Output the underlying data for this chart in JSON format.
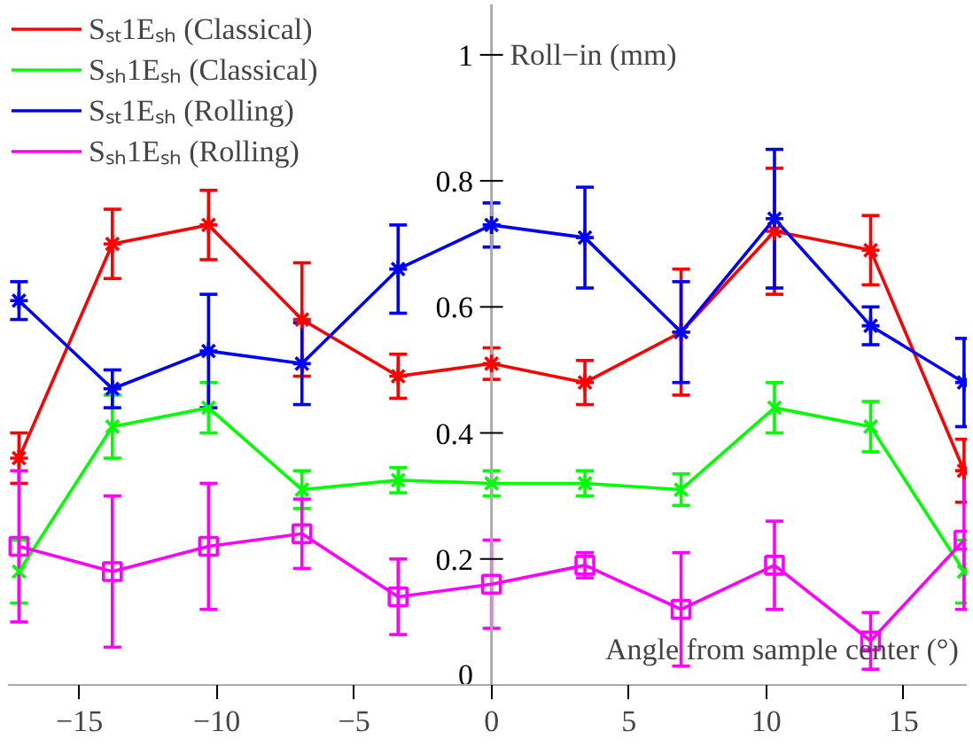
{
  "chart_data": {
    "type": "line",
    "xlabel": "Angle from sample center (°)",
    "ylabel": "Roll−in (mm)",
    "x": [
      -17.2,
      -13.8,
      -10.3,
      -6.9,
      -3.4,
      0,
      3.4,
      6.9,
      10.3,
      13.8,
      17.2
    ],
    "xlim": [
      -17.6,
      17.3
    ],
    "ylim": [
      0,
      1.08
    ],
    "xticks": [
      {
        "value": -15,
        "label": "−15"
      },
      {
        "value": -10,
        "label": "−10"
      },
      {
        "value": -5,
        "label": "−5"
      },
      0,
      5,
      10,
      15
    ],
    "yticks": [
      0,
      0.2,
      0.4,
      0.6,
      0.8,
      1
    ],
    "grid": false,
    "legend": "top left",
    "line_style": "solid",
    "series": [
      {
        "name": "Sₛₜ1Eₛₕ (Classical)",
        "color": "#ff0000",
        "marker": "cross",
        "values": [
          0.36,
          0.7,
          0.73,
          0.58,
          0.49,
          0.51,
          0.48,
          0.56,
          0.72,
          0.69,
          0.34
        ],
        "errors": [
          0.04,
          0.055,
          0.055,
          0.09,
          0.035,
          0.025,
          0.035,
          0.1,
          0.1,
          0.055,
          0.05
        ]
      },
      {
        "name": "Sₛₕ1Eₛₕ (Classical)",
        "color": "#00ff00",
        "marker": "x",
        "values": [
          0.18,
          0.41,
          0.44,
          0.31,
          0.325,
          0.32,
          0.32,
          0.31,
          0.44,
          0.41,
          0.18
        ],
        "errors": [
          0.05,
          0.05,
          0.04,
          0.03,
          0.02,
          0.02,
          0.02,
          0.025,
          0.04,
          0.04,
          0.05
        ]
      },
      {
        "name": "Sₛₜ1Eₛₕ (Rolling)",
        "color": "#0000ff",
        "marker": "cross",
        "values": [
          0.61,
          0.47,
          0.53,
          0.51,
          0.66,
          0.73,
          0.71,
          0.56,
          0.74,
          0.57,
          0.48
        ],
        "errors": [
          0.03,
          0.03,
          0.09,
          0.065,
          0.07,
          0.035,
          0.08,
          0.08,
          0.11,
          0.03,
          0.07
        ]
      },
      {
        "name": "Sₛₕ1Eₛₕ (Rolling)",
        "color": "#ff00ff",
        "marker": "square",
        "values": [
          0.22,
          0.18,
          0.22,
          0.24,
          0.14,
          0.16,
          0.19,
          0.12,
          0.19,
          0.07,
          0.23
        ],
        "errors": [
          0.12,
          0.12,
          0.1,
          0.055,
          0.06,
          0.07,
          0.02,
          0.09,
          0.07,
          0.045,
          0.11
        ]
      }
    ]
  }
}
